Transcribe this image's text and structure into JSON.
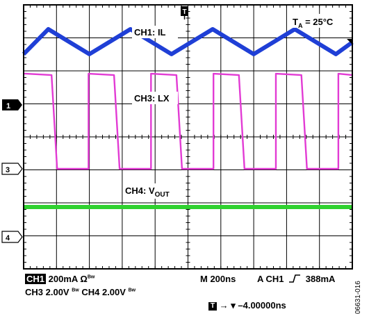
{
  "chart_data": {
    "type": "line",
    "title": "",
    "annotation": "Tₐ = 25°C",
    "annotation_main": "T",
    "annotation_sub": "A",
    "annotation_rest": " = 25°C",
    "grid": true,
    "x_unit": "ns",
    "xlim": [
      0,
      2000
    ],
    "time_per_div_ns": 200,
    "series": [
      {
        "name": "CH1: IL",
        "color": "#1f3fd6",
        "volts_per_div": "200mA",
        "x": [
          0,
          150,
          400,
          650,
          900,
          1150,
          1400,
          1650,
          1900,
          2000
        ],
        "y_div": [
          0.5,
          1.55,
          0.5,
          1.55,
          0.5,
          1.55,
          0.5,
          1.55,
          0.5,
          1.0
        ]
      },
      {
        "name": "CH3: LX",
        "color": "#e23bd4",
        "volts_per_div": "2.00V",
        "period_ns": 380,
        "high_duration_ns": 155,
        "first_rise_ns": 15,
        "high_div": 3.1,
        "low_div": 0.0
      },
      {
        "name": "CH4: VOUT",
        "label_main": "CH4: V",
        "label_sub": "OUT",
        "color": "#2fd12f",
        "volts_per_div": "2.00V",
        "level_div": 1.05
      }
    ]
  },
  "markers": {
    "ch1": "1",
    "ch3": "3",
    "ch4": "4",
    "trigger_pos": "T"
  },
  "status": {
    "ch1_box": "CH1",
    "ch1_scale": "200mA Ω",
    "bw": "Bw",
    "ch3": "CH3  2.00V",
    "ch4": "CH4  2.00V",
    "timebase": "M 200ns",
    "trigger": "A  CH1",
    "trigger_level": "388mA",
    "trigger_symbol": "T",
    "trigger_offset": "→ ▾ –4.00000ns"
  },
  "doc_id": "06631-016"
}
